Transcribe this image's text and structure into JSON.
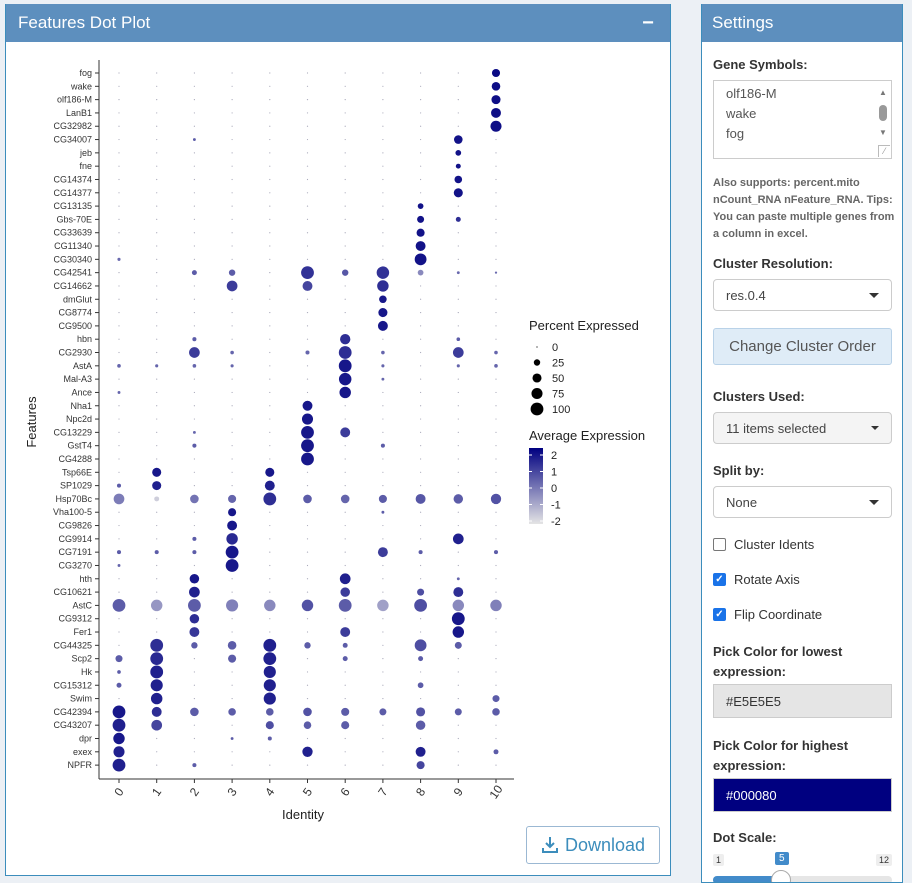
{
  "plot_panel": {
    "title": "Features Dot Plot",
    "collapse_icon": "−",
    "download_label": "Download"
  },
  "settings": {
    "title": "Settings",
    "gene_symbols_label": "Gene Symbols:",
    "gene_symbols_lines": [
      "olf186-M",
      "wake",
      "fog"
    ],
    "help_text": "Also supports: percent.mito nCount_RNA nFeature_RNA. Tips: You can paste multiple genes from a column in excel.",
    "cluster_resolution_label": "Cluster Resolution:",
    "cluster_resolution_value": "res.0.4",
    "change_order_label": "Change Cluster Order",
    "clusters_used_label": "Clusters Used:",
    "clusters_used_value": "11 items selected",
    "split_by_label": "Split by:",
    "split_by_value": "None",
    "cluster_idents_label": "Cluster Idents",
    "cluster_idents_checked": false,
    "rotate_axis_label": "Rotate Axis",
    "rotate_axis_checked": true,
    "flip_coordinate_label": "Flip Coordinate",
    "flip_coordinate_checked": true,
    "low_color_label": "Pick Color for lowest expression:",
    "low_color_value": "#E5E5E5",
    "high_color_label": "Pick Color for highest expression:",
    "high_color_value": "#000080",
    "dot_scale_label": "Dot Scale:",
    "dot_scale_min": "1",
    "dot_scale_max": "12",
    "dot_scale_value": "5"
  },
  "chart_data": {
    "type": "dotplot",
    "xlabel": "Identity",
    "ylabel": "Features",
    "x_categories": [
      "0",
      "1",
      "2",
      "3",
      "4",
      "5",
      "6",
      "7",
      "8",
      "9",
      "10"
    ],
    "features": [
      "fog",
      "wake",
      "olf186-M",
      "LanB1",
      "CG32982",
      "CG34007",
      "jeb",
      "fne",
      "CG14374",
      "CG14377",
      "CG13135",
      "Gbs-70E",
      "CG33639",
      "CG11340",
      "CG30340",
      "CG42541",
      "CG14662",
      "dmGlut",
      "CG8774",
      "CG9500",
      "hbn",
      "CG2930",
      "AstA",
      "Mal-A3",
      "Ance",
      "Nha1",
      "Npc2d",
      "CG13229",
      "GstT4",
      "CG4288",
      "Tsp66E",
      "SP1029",
      "Hsp70Bc",
      "Vha100-5",
      "CG9826",
      "CG9914",
      "CG7191",
      "CG3270",
      "hth",
      "CG10621",
      "AstC",
      "CG9312",
      "Fer1",
      "CG44325",
      "Scp2",
      "Hk",
      "CG15312",
      "Swim",
      "CG42394",
      "CG43207",
      "dpr",
      "exex",
      "NPFR"
    ],
    "legend_size_title": "Percent Expressed",
    "legend_size_values": [
      0,
      25,
      50,
      75,
      100
    ],
    "legend_color_title": "Average Expression",
    "legend_color_ticks": [
      2,
      1,
      0,
      -1,
      -2
    ],
    "color_low": "#E5E5E5",
    "color_high": "#000080",
    "dots": [
      [
        "fog",
        10,
        40,
        2.3
      ],
      [
        "wake",
        10,
        45,
        2.2
      ],
      [
        "olf186-M",
        10,
        50,
        2.2
      ],
      [
        "LanB1",
        10,
        60,
        2.2
      ],
      [
        "CG32982",
        10,
        75,
        2.2
      ],
      [
        "CG34007",
        9,
        45,
        2.1
      ],
      [
        "CG34007",
        2,
        5,
        0.5
      ],
      [
        "jeb",
        9,
        20,
        2.1
      ],
      [
        "fne",
        9,
        15,
        2.1
      ],
      [
        "CG14374",
        9,
        35,
        2.1
      ],
      [
        "CG14377",
        9,
        50,
        2.1
      ],
      [
        "CG13135",
        8,
        20,
        2.1
      ],
      [
        "Gbs-70E",
        8,
        30,
        2.1
      ],
      [
        "Gbs-70E",
        9,
        15,
        1.5
      ],
      [
        "CG33639",
        8,
        40,
        2.1
      ],
      [
        "CG11340",
        8,
        60,
        2.1
      ],
      [
        "CG30340",
        8,
        85,
        2.1
      ],
      [
        "CG30340",
        0,
        6,
        0.2
      ],
      [
        "CG42541",
        2,
        15,
        0.5
      ],
      [
        "CG42541",
        3,
        25,
        0.5
      ],
      [
        "CG42541",
        5,
        100,
        1.4
      ],
      [
        "CG42541",
        6,
        25,
        0.6
      ],
      [
        "CG42541",
        7,
        95,
        1.4
      ],
      [
        "CG42541",
        8,
        20,
        -0.5
      ],
      [
        "CG42541",
        9,
        5,
        0.2
      ],
      [
        "CG42541",
        10,
        3,
        0.2
      ],
      [
        "CG14662",
        3,
        70,
        1.2
      ],
      [
        "CG14662",
        5,
        60,
        1.0
      ],
      [
        "CG14662",
        7,
        80,
        1.5
      ],
      [
        "dmGlut",
        7,
        35,
        2.0
      ],
      [
        "CG8774",
        7,
        50,
        2.0
      ],
      [
        "CG9500",
        7,
        60,
        2.0
      ],
      [
        "hbn",
        2,
        10,
        0.5
      ],
      [
        "hbn",
        6,
        65,
        1.5
      ],
      [
        "hbn",
        9,
        8,
        0.5
      ],
      [
        "CG2930",
        2,
        70,
        1.2
      ],
      [
        "CG2930",
        3,
        8,
        0.3
      ],
      [
        "CG2930",
        5,
        10,
        0.3
      ],
      [
        "CG2930",
        6,
        100,
        1.5
      ],
      [
        "CG2930",
        7,
        8,
        0.3
      ],
      [
        "CG2930",
        9,
        70,
        1.2
      ],
      [
        "CG2930",
        10,
        8,
        0.3
      ],
      [
        "AstA",
        0,
        8,
        0.3
      ],
      [
        "AstA",
        1,
        6,
        0.3
      ],
      [
        "AstA",
        2,
        8,
        0.3
      ],
      [
        "AstA",
        3,
        6,
        0.3
      ],
      [
        "AstA",
        6,
        100,
        2.0
      ],
      [
        "AstA",
        7,
        6,
        0.3
      ],
      [
        "AstA",
        9,
        6,
        0.3
      ],
      [
        "AstA",
        10,
        8,
        0.3
      ],
      [
        "Mal-A3",
        6,
        95,
        2.0
      ],
      [
        "Mal-A3",
        7,
        5,
        0.3
      ],
      [
        "Ance",
        6,
        80,
        2.0
      ],
      [
        "Ance",
        0,
        5,
        0.3
      ],
      [
        "Nha1",
        5,
        60,
        2.0
      ],
      [
        "Npc2d",
        5,
        75,
        2.0
      ],
      [
        "CG13229",
        2,
        5,
        0.3
      ],
      [
        "CG13229",
        5,
        100,
        2.0
      ],
      [
        "CG13229",
        6,
        60,
        1.2
      ],
      [
        "GstT4",
        2,
        10,
        0.5
      ],
      [
        "GstT4",
        5,
        100,
        2.0
      ],
      [
        "GstT4",
        7,
        10,
        0.5
      ],
      [
        "CG4288",
        5,
        100,
        2.0
      ],
      [
        "Tsp66E",
        1,
        50,
        2.0
      ],
      [
        "Tsp66E",
        4,
        50,
        2.0
      ],
      [
        "SP1029",
        0,
        10,
        0.5
      ],
      [
        "SP1029",
        1,
        50,
        1.8
      ],
      [
        "SP1029",
        4,
        60,
        1.8
      ],
      [
        "Hsp70Bc",
        0,
        70,
        -0.2
      ],
      [
        "Hsp70Bc",
        1,
        15,
        -2.0
      ],
      [
        "Hsp70Bc",
        2,
        45,
        0.0
      ],
      [
        "Hsp70Bc",
        3,
        40,
        0.3
      ],
      [
        "Hsp70Bc",
        4,
        100,
        1.5
      ],
      [
        "Hsp70Bc",
        5,
        45,
        0.5
      ],
      [
        "Hsp70Bc",
        6,
        45,
        0.3
      ],
      [
        "Hsp70Bc",
        7,
        40,
        0.5
      ],
      [
        "Hsp70Bc",
        8,
        60,
        0.6
      ],
      [
        "Hsp70Bc",
        9,
        55,
        0.5
      ],
      [
        "Hsp70Bc",
        10,
        65,
        0.7
      ],
      [
        "Vha100-5",
        3,
        40,
        2.0
      ],
      [
        "Vha100-5",
        7,
        5,
        0.5
      ],
      [
        "CG9826",
        3,
        60,
        2.0
      ],
      [
        "CG9914",
        2,
        10,
        0.5
      ],
      [
        "CG9914",
        3,
        80,
        1.6
      ],
      [
        "CG9914",
        9,
        70,
        1.8
      ],
      [
        "CG7191",
        0,
        10,
        0.5
      ],
      [
        "CG7191",
        1,
        10,
        0.5
      ],
      [
        "CG7191",
        2,
        10,
        0.5
      ],
      [
        "CG7191",
        3,
        100,
        2.0
      ],
      [
        "CG7191",
        7,
        60,
        1.2
      ],
      [
        "CG7191",
        8,
        10,
        0.5
      ],
      [
        "CG7191",
        10,
        10,
        0.5
      ],
      [
        "CG3270",
        3,
        100,
        2.0
      ],
      [
        "CG3270",
        0,
        5,
        0.3
      ],
      [
        "hth",
        2,
        55,
        2.0
      ],
      [
        "hth",
        6,
        70,
        1.8
      ],
      [
        "hth",
        9,
        5,
        0.3
      ],
      [
        "CG10621",
        2,
        70,
        1.8
      ],
      [
        "CG10621",
        6,
        55,
        1.2
      ],
      [
        "CG10621",
        8,
        30,
        0.8
      ],
      [
        "CG10621",
        9,
        60,
        1.5
      ],
      [
        "AstC",
        0,
        100,
        0.5
      ],
      [
        "AstC",
        1,
        80,
        -0.8
      ],
      [
        "AstC",
        2,
        100,
        0.5
      ],
      [
        "AstC",
        3,
        90,
        -0.3
      ],
      [
        "AstC",
        4,
        80,
        -0.5
      ],
      [
        "AstC",
        5,
        80,
        0.7
      ],
      [
        "AstC",
        6,
        100,
        0.5
      ],
      [
        "AstC",
        7,
        80,
        -1.0
      ],
      [
        "AstC",
        8,
        100,
        0.8
      ],
      [
        "AstC",
        9,
        80,
        -0.5
      ],
      [
        "AstC",
        10,
        80,
        -0.3
      ],
      [
        "CG9312",
        2,
        55,
        1.5
      ],
      [
        "CG9312",
        9,
        100,
        2.0
      ],
      [
        "Fer1",
        2,
        60,
        1.3
      ],
      [
        "Fer1",
        6,
        60,
        1.2
      ],
      [
        "Fer1",
        9,
        80,
        2.0
      ],
      [
        "CG44325",
        1,
        100,
        1.5
      ],
      [
        "CG44325",
        2,
        25,
        0.5
      ],
      [
        "CG44325",
        3,
        45,
        0.5
      ],
      [
        "CG44325",
        4,
        100,
        1.8
      ],
      [
        "CG44325",
        5,
        25,
        0.5
      ],
      [
        "CG44325",
        6,
        15,
        0.5
      ],
      [
        "CG44325",
        8,
        85,
        0.8
      ],
      [
        "CG44325",
        9,
        30,
        0.5
      ],
      [
        "Scp2",
        0,
        30,
        0.5
      ],
      [
        "Scp2",
        1,
        100,
        1.6
      ],
      [
        "Scp2",
        3,
        40,
        0.5
      ],
      [
        "Scp2",
        4,
        100,
        1.8
      ],
      [
        "Scp2",
        6,
        15,
        0.5
      ],
      [
        "Scp2",
        8,
        15,
        0.5
      ],
      [
        "Hk",
        1,
        100,
        1.8
      ],
      [
        "Hk",
        4,
        90,
        1.8
      ],
      [
        "Hk",
        0,
        8,
        0.5
      ],
      [
        "CG15312",
        0,
        15,
        0.5
      ],
      [
        "CG15312",
        1,
        90,
        1.8
      ],
      [
        "CG15312",
        4,
        90,
        1.8
      ],
      [
        "CG15312",
        8,
        20,
        0.5
      ],
      [
        "Swim",
        1,
        80,
        1.8
      ],
      [
        "Swim",
        4,
        90,
        1.8
      ],
      [
        "Swim",
        10,
        30,
        0.5
      ],
      [
        "CG42394",
        0,
        100,
        2.0
      ],
      [
        "CG42394",
        1,
        60,
        1.5
      ],
      [
        "CG42394",
        2,
        45,
        0.5
      ],
      [
        "CG42394",
        3,
        35,
        0.5
      ],
      [
        "CG42394",
        4,
        35,
        0.5
      ],
      [
        "CG42394",
        5,
        45,
        0.7
      ],
      [
        "CG42394",
        6,
        40,
        0.5
      ],
      [
        "CG42394",
        7,
        30,
        0.5
      ],
      [
        "CG42394",
        8,
        50,
        0.7
      ],
      [
        "CG42394",
        9,
        30,
        0.5
      ],
      [
        "CG42394",
        10,
        35,
        0.5
      ],
      [
        "CG43207",
        0,
        100,
        1.8
      ],
      [
        "CG43207",
        1,
        70,
        1.0
      ],
      [
        "CG43207",
        4,
        40,
        0.8
      ],
      [
        "CG43207",
        5,
        35,
        0.5
      ],
      [
        "CG43207",
        6,
        40,
        0.5
      ],
      [
        "CG43207",
        8,
        55,
        0.5
      ],
      [
        "dpr",
        0,
        80,
        2.0
      ],
      [
        "dpr",
        3,
        5,
        0.5
      ],
      [
        "dpr",
        4,
        10,
        0.5
      ],
      [
        "exex",
        0,
        75,
        1.8
      ],
      [
        "exex",
        5,
        65,
        1.8
      ],
      [
        "exex",
        8,
        60,
        1.8
      ],
      [
        "exex",
        10,
        15,
        0.5
      ],
      [
        "NPFR",
        0,
        100,
        1.8
      ],
      [
        "NPFR",
        2,
        10,
        0.5
      ],
      [
        "NPFR",
        8,
        40,
        1.0
      ]
    ]
  }
}
